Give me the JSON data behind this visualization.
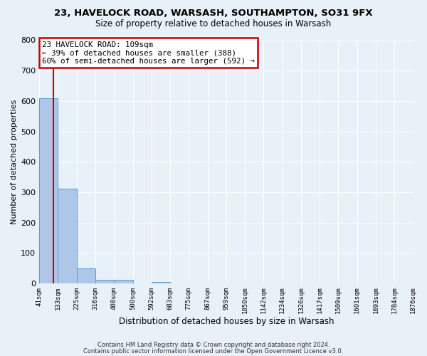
{
  "title1": "23, HAVELOCK ROAD, WARSASH, SOUTHAMPTON, SO31 9FX",
  "title2": "Size of property relative to detached houses in Warsash",
  "xlabel": "Distribution of detached houses by size in Warsash",
  "ylabel": "Number of detached properties",
  "bin_labels": [
    "41sqm",
    "133sqm",
    "225sqm",
    "316sqm",
    "408sqm",
    "500sqm",
    "592sqm",
    "683sqm",
    "775sqm",
    "867sqm",
    "959sqm",
    "1050sqm",
    "1142sqm",
    "1234sqm",
    "1326sqm",
    "1417sqm",
    "1509sqm",
    "1601sqm",
    "1693sqm",
    "1784sqm",
    "1876sqm"
  ],
  "bar_heights": [
    608,
    311,
    49,
    11,
    11,
    0,
    5,
    0,
    0,
    0,
    0,
    0,
    0,
    0,
    0,
    0,
    0,
    0,
    0,
    0,
    0
  ],
  "bar_color": "#aec6e8",
  "bar_edge_color": "#5b9bd5",
  "bg_color": "#e8f0f8",
  "grid_color": "#ffffff",
  "property_line_x": 109,
  "property_line_color": "#cc0000",
  "annotation_title": "23 HAVELOCK ROAD: 109sqm",
  "annotation_line1": "← 39% of detached houses are smaller (388)",
  "annotation_line2": "60% of semi-detached houses are larger (592) →",
  "annotation_box_color": "#cc0000",
  "ylim": [
    0,
    800
  ],
  "bin_edges": [
    41,
    133,
    225,
    316,
    408,
    500,
    592,
    683,
    775,
    867,
    959,
    1050,
    1142,
    1234,
    1326,
    1417,
    1509,
    1601,
    1693,
    1784,
    1876
  ],
  "footer1": "Contains HM Land Registry data © Crown copyright and database right 2024.",
  "footer2": "Contains public sector information licensed under the Open Government Licence v3.0."
}
